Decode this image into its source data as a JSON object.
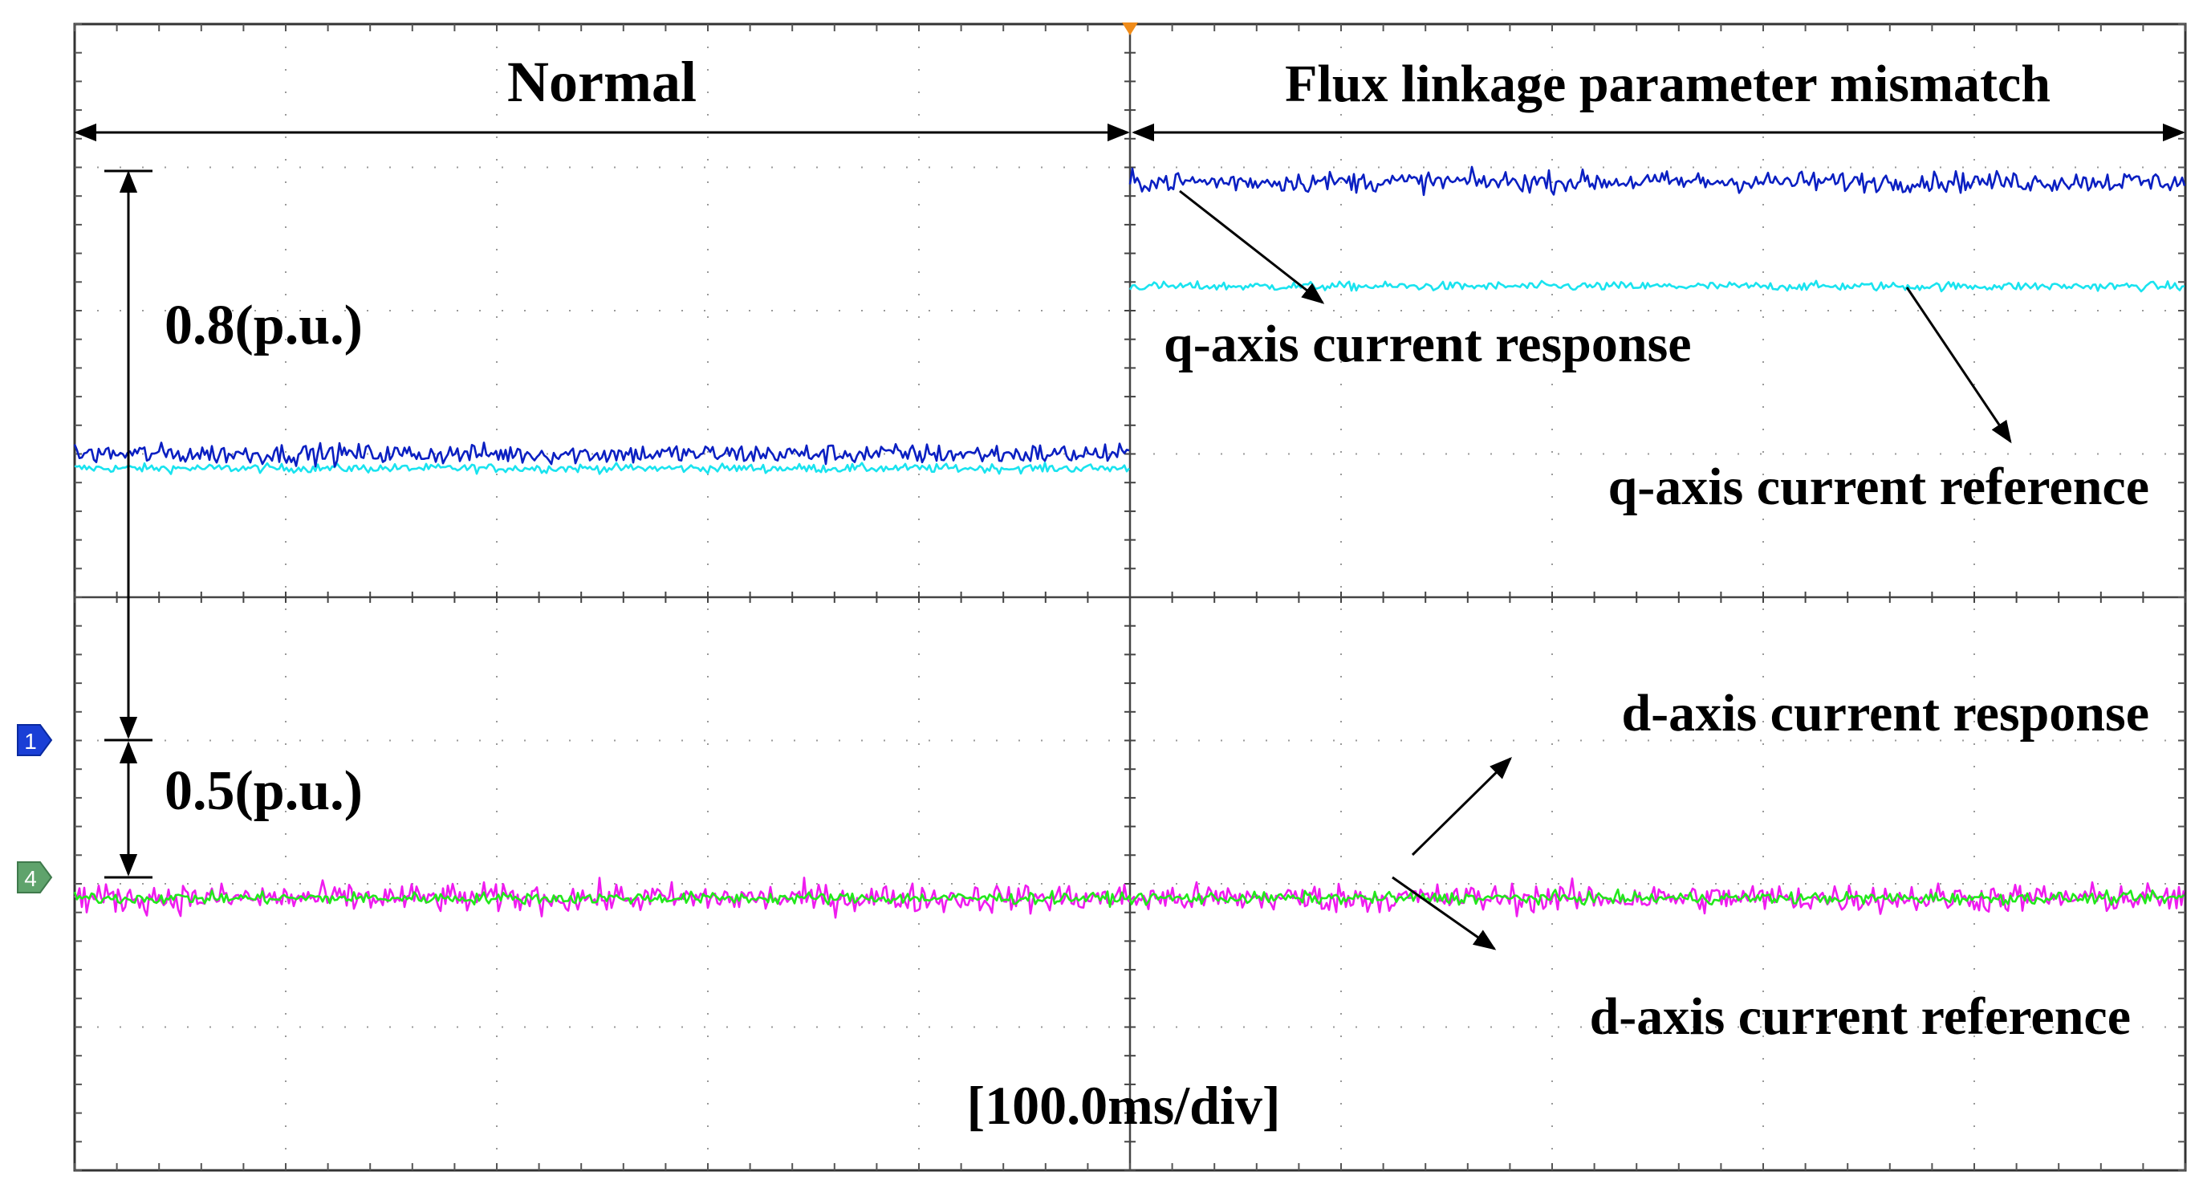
{
  "chart_data": {
    "type": "line",
    "title": "",
    "x_axis": {
      "label": "[100.0ms/div]",
      "divisions": 10,
      "unit_per_div_ms": 100.0,
      "range_ms": [
        0,
        1000
      ]
    },
    "y_axis": {
      "divisions": 8,
      "unit": "p.u."
    },
    "regions": [
      {
        "name": "Normal",
        "from_div": 0,
        "to_div": 5
      },
      {
        "name": "Flux linkage parameter mismatch",
        "from_div": 5,
        "to_div": 10
      }
    ],
    "channel_markers": [
      {
        "id": "1",
        "level_div": 2.9,
        "color": "#1a3fd6"
      },
      {
        "id": "4",
        "level_div": 1.9,
        "color": "#5fa36c"
      }
    ],
    "scale_annotations": [
      {
        "text": "0.8(p.u.)",
        "from_div": 7.0,
        "to_div": 2.9
      },
      {
        "text": "0.5(p.u.)",
        "from_div": 2.9,
        "to_div": 1.9
      }
    ],
    "series": [
      {
        "name": "q-axis current response",
        "color": "#0a1fc2",
        "noise_div": 0.07,
        "segments": [
          {
            "from_div": 0,
            "to_div": 5,
            "level_div": 5.0
          },
          {
            "from_div": 5,
            "to_div": 10,
            "level_div": 6.9
          }
        ]
      },
      {
        "name": "q-axis current reference",
        "color": "#19e3ef",
        "noise_div": 0.03,
        "segments": [
          {
            "from_div": 0,
            "to_div": 5,
            "level_div": 4.9
          },
          {
            "from_div": 5,
            "to_div": 10,
            "level_div": 6.17
          }
        ]
      },
      {
        "name": "d-axis current reference",
        "color": "#ef1cef",
        "noise_div": 0.1,
        "segments": [
          {
            "from_div": 0,
            "to_div": 10,
            "level_div": 1.9
          }
        ]
      },
      {
        "name": "d-axis current response",
        "color": "#22e81c",
        "noise_div": 0.04,
        "segments": [
          {
            "from_div": 0,
            "to_div": 10,
            "level_div": 1.9
          }
        ]
      }
    ]
  }
}
